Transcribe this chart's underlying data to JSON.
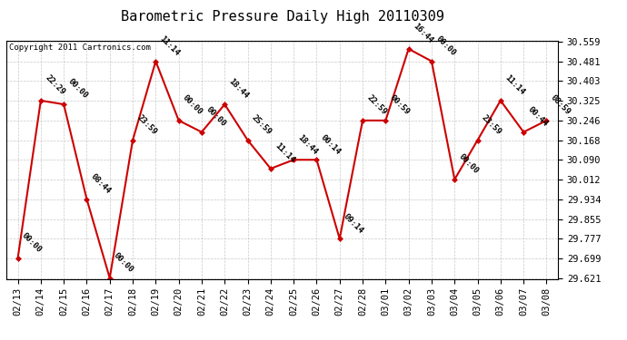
{
  "title": "Barometric Pressure Daily High 20110309",
  "copyright": "Copyright 2011 Cartronics.com",
  "x_labels": [
    "02/13",
    "02/14",
    "02/15",
    "02/16",
    "02/17",
    "02/18",
    "02/19",
    "02/20",
    "02/21",
    "02/22",
    "02/23",
    "02/24",
    "02/25",
    "02/26",
    "02/27",
    "02/28",
    "03/01",
    "03/02",
    "03/03",
    "03/04",
    "03/05",
    "03/06",
    "03/07",
    "03/08"
  ],
  "y_values": [
    29.699,
    30.325,
    30.31,
    29.934,
    29.621,
    30.168,
    30.481,
    30.246,
    30.2,
    30.31,
    30.168,
    30.055,
    30.09,
    30.09,
    29.777,
    30.246,
    30.246,
    30.53,
    30.481,
    30.012,
    30.168,
    30.325,
    30.2,
    30.246
  ],
  "time_labels": [
    "00:00",
    "22:29",
    "00:00",
    "08:44",
    "00:00",
    "23:59",
    "11:14",
    "00:00",
    "00:00",
    "18:44",
    "25:59",
    "11:14",
    "18:44",
    "00:14",
    "09:14",
    "22:59",
    "00:59",
    "16:44",
    "00:00",
    "00:00",
    "23:59",
    "11:14",
    "00:44",
    "08:59"
  ],
  "ylim_min": 29.621,
  "ylim_max": 30.559,
  "yticks": [
    29.621,
    29.699,
    29.777,
    29.855,
    29.934,
    30.012,
    30.09,
    30.168,
    30.246,
    30.325,
    30.403,
    30.481,
    30.559
  ],
  "line_color": "#cc0000",
  "marker_color": "#cc0000",
  "bg_color": "#ffffff",
  "grid_color": "#bbbbbb",
  "title_fontsize": 11,
  "tick_fontsize": 7.5,
  "annot_fontsize": 6.5
}
